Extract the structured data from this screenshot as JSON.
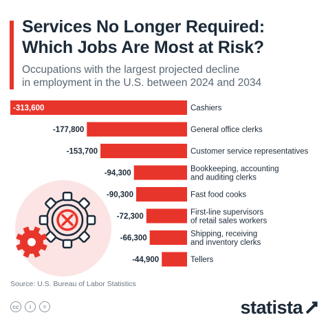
{
  "header": {
    "title_line1": "Services No Longer Required:",
    "title_line2": "Which Jobs Are Most at Risk?",
    "subtitle_line1": "Occupations with the largest projected decline",
    "subtitle_line2": "in employment in the U.S. between 2024 and 2034"
  },
  "colors": {
    "accent": "#e8352b",
    "bar": "#e8352b",
    "text_dark": "#1c2a38",
    "text_muted": "#5a6772"
  },
  "chart_data": {
    "type": "bar",
    "orientation": "horizontal",
    "categories": [
      [
        "Cashiers"
      ],
      [
        "General office clerks"
      ],
      [
        "Customer service representatives"
      ],
      [
        "Bookkeeping, accounting",
        "and auditing clerks"
      ],
      [
        "Fast food cooks"
      ],
      [
        "First-line supervisors",
        "of retail sales workers"
      ],
      [
        "Shipping, receiving",
        "and inventory clerks"
      ],
      [
        "Tellers"
      ]
    ],
    "values": [
      -313600,
      -177800,
      -153700,
      -94300,
      -90300,
      -72300,
      -66300,
      -44900
    ],
    "value_labels": [
      "-313,600",
      "-177,800",
      "-153,700",
      "-94,300",
      "-90,300",
      "-72,300",
      "-66,300",
      "-44,900"
    ],
    "title": "Services No Longer Required: Which Jobs Are Most at Risk?",
    "xlabel": "",
    "ylabel": "",
    "grid": false
  },
  "source": "Source: U.S. Bureau of Labor Statistics",
  "footer": {
    "license_icons": [
      "cc",
      "i",
      "="
    ],
    "brand": "statista"
  },
  "decoration": {
    "icon": "gear-with-x-icon",
    "gear_color": "#e8352b",
    "circle_color": "#fbe4e3"
  }
}
